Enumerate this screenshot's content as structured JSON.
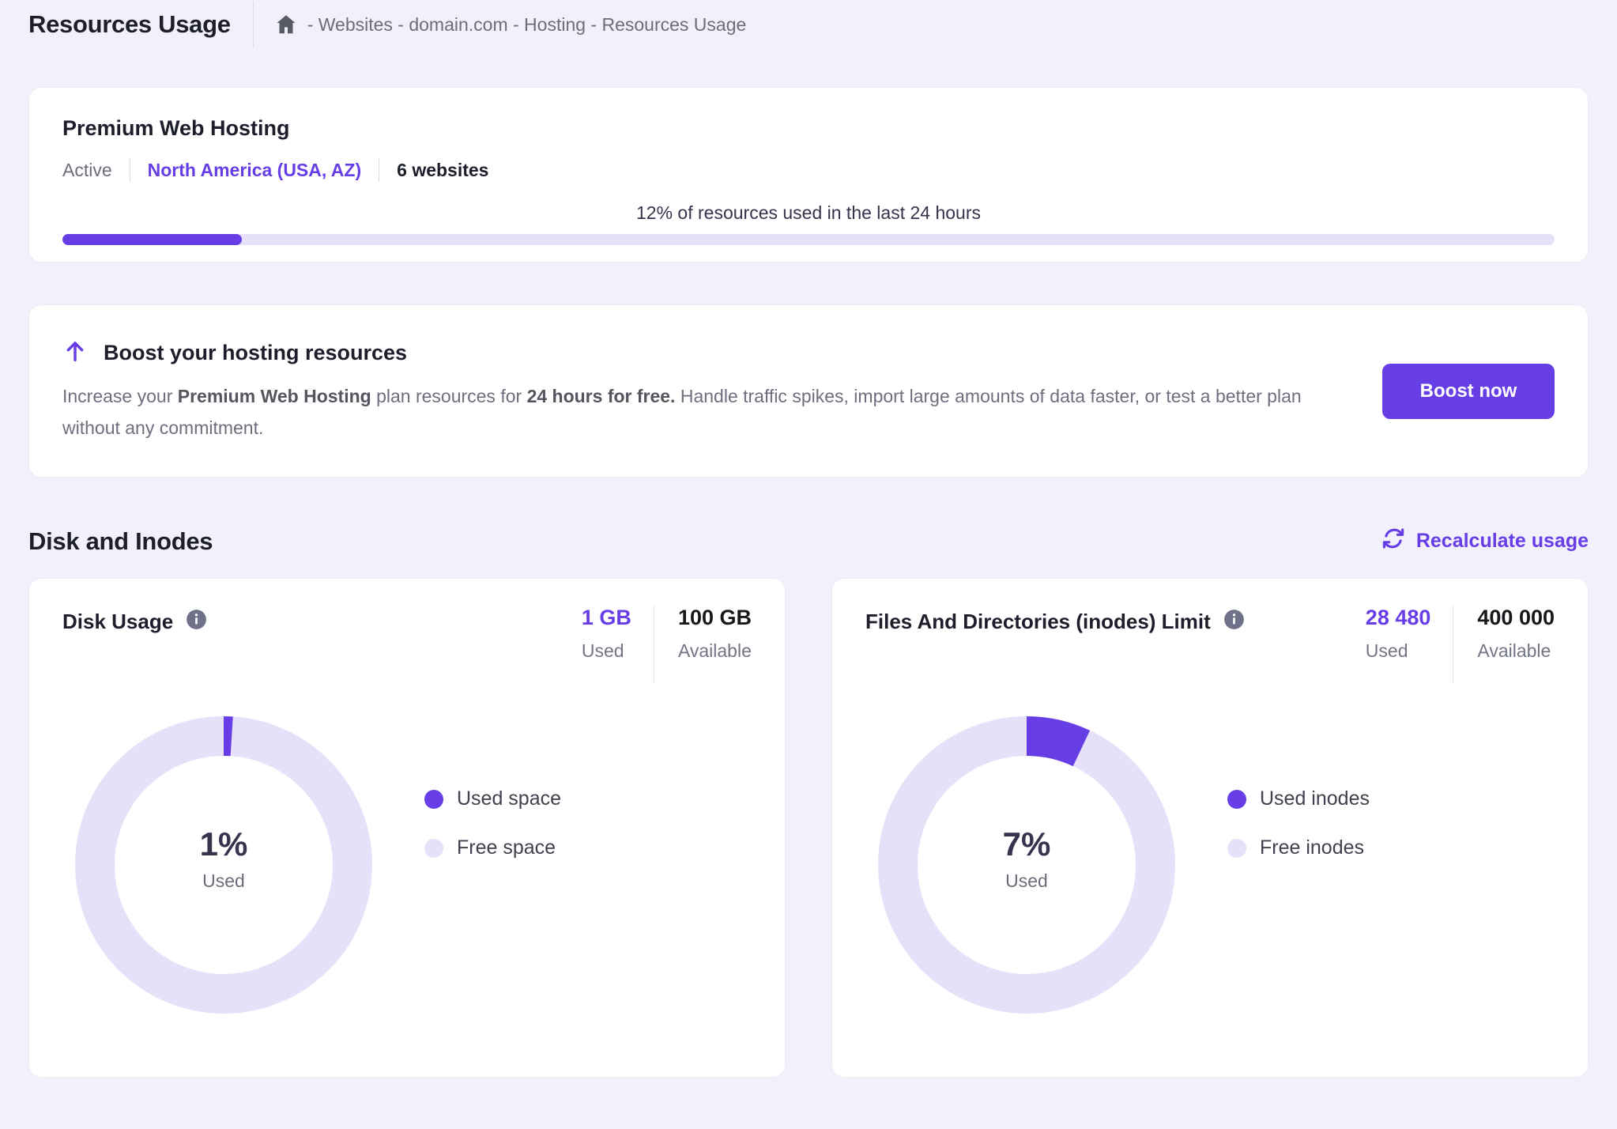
{
  "colors": {
    "brand_purple": "#673de6",
    "lavender_free": "#e6e0f9",
    "page_background": "#f2f1fb",
    "text_dark": "#1d1e2c",
    "text_gray": "#6c6d7a"
  },
  "header": {
    "title": "Resources Usage",
    "breadcrumb": "- Websites - domain.com - Hosting - Resources Usage"
  },
  "plan": {
    "name": "Premium Web Hosting",
    "status": "Active",
    "region": "North America (USA, AZ)",
    "websites": "6 websites",
    "usage_text": "12% of resources used in the last 24 hours",
    "usage_percent": 12
  },
  "boost": {
    "title": "Boost your hosting resources",
    "text_1": "Increase your ",
    "bold_1": "Premium Web Hosting",
    "text_2": " plan resources for ",
    "bold_2": "24 hours for free.",
    "text_3": " Handle traffic spikes, import large amounts of data faster, or test a better plan without any commitment.",
    "button_label": "Boost now"
  },
  "disk_section": {
    "title": "Disk and Inodes",
    "recalculate_label": "Recalculate usage"
  },
  "cards": [
    {
      "title": "Disk Usage",
      "used_value": "1 GB",
      "used_label": "Used",
      "available_value": "100 GB",
      "available_label": "Available",
      "percent": 1,
      "percent_text": "1%",
      "center_label": "Used",
      "legend_used": "Used space",
      "legend_free": "Free space"
    },
    {
      "title": "Files And Directories (inodes) Limit",
      "used_value": "28 480",
      "used_label": "Used",
      "available_value": "400 000",
      "available_label": "Available",
      "percent": 7,
      "percent_text": "7%",
      "center_label": "Used",
      "legend_used": "Used inodes",
      "legend_free": "Free inodes"
    }
  ],
  "chart_data": [
    {
      "type": "pie",
      "title": "Disk Usage",
      "slices": [
        {
          "label": "Used space",
          "value": 1
        },
        {
          "label": "Free space",
          "value": 99
        }
      ],
      "center_text": "1% Used",
      "legend_position": "right"
    },
    {
      "type": "pie",
      "title": "Files And Directories (inodes) Limit",
      "slices": [
        {
          "label": "Used inodes",
          "value": 7
        },
        {
          "label": "Free inodes",
          "value": 93
        }
      ],
      "center_text": "7% Used",
      "legend_position": "right"
    }
  ]
}
